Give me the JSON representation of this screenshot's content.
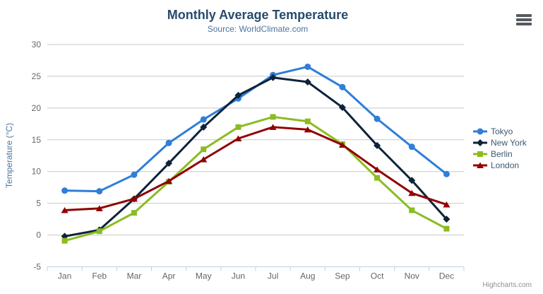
{
  "header": {
    "title": "Monthly Average Temperature",
    "subtitle": "Source: WorldClimate.com"
  },
  "credit": {
    "label": "Highcharts.com"
  },
  "context_menu": {
    "icon": "hamburger-icon"
  },
  "chart_data": {
    "type": "line",
    "title": "Monthly Average Temperature",
    "subtitle": "Source: WorldClimate.com",
    "categories": [
      "Jan",
      "Feb",
      "Mar",
      "Apr",
      "May",
      "Jun",
      "Jul",
      "Aug",
      "Sep",
      "Oct",
      "Nov",
      "Dec"
    ],
    "series": [
      {
        "name": "Tokyo",
        "color": "#2f7ed8",
        "marker": "circle",
        "values": [
          7.0,
          6.9,
          9.5,
          14.5,
          18.2,
          21.5,
          25.2,
          26.5,
          23.3,
          18.3,
          13.9,
          9.6
        ]
      },
      {
        "name": "New York",
        "color": "#0d233a",
        "marker": "diamond",
        "values": [
          -0.2,
          0.8,
          5.7,
          11.3,
          17.0,
          22.0,
          24.8,
          24.1,
          20.1,
          14.1,
          8.6,
          2.5
        ]
      },
      {
        "name": "Berlin",
        "color": "#8bbc21",
        "marker": "square",
        "values": [
          -0.9,
          0.6,
          3.5,
          8.4,
          13.5,
          17.0,
          18.6,
          17.9,
          14.3,
          9.0,
          3.9,
          1.0
        ]
      },
      {
        "name": "London",
        "color": "#910000",
        "marker": "triangle",
        "values": [
          3.9,
          4.2,
          5.7,
          8.5,
          11.9,
          15.2,
          17.0,
          16.6,
          14.2,
          10.3,
          6.6,
          4.8
        ]
      }
    ],
    "xlabel": "",
    "ylabel": "Temperature (°C)",
    "ylim": [
      -5,
      30
    ],
    "yticks": [
      -5,
      0,
      5,
      10,
      15,
      20,
      25,
      30
    ],
    "grid": true,
    "legend_position": "right"
  },
  "colors": {
    "title": "#274b6d",
    "subtitle": "#4d759e",
    "axis_label": "#666666",
    "axis_title": "#4d759e",
    "grid_line": "#c8c8c8",
    "axis_line": "#c0d0e0",
    "legend_text": "#3e576f",
    "credit_text": "#909090"
  }
}
